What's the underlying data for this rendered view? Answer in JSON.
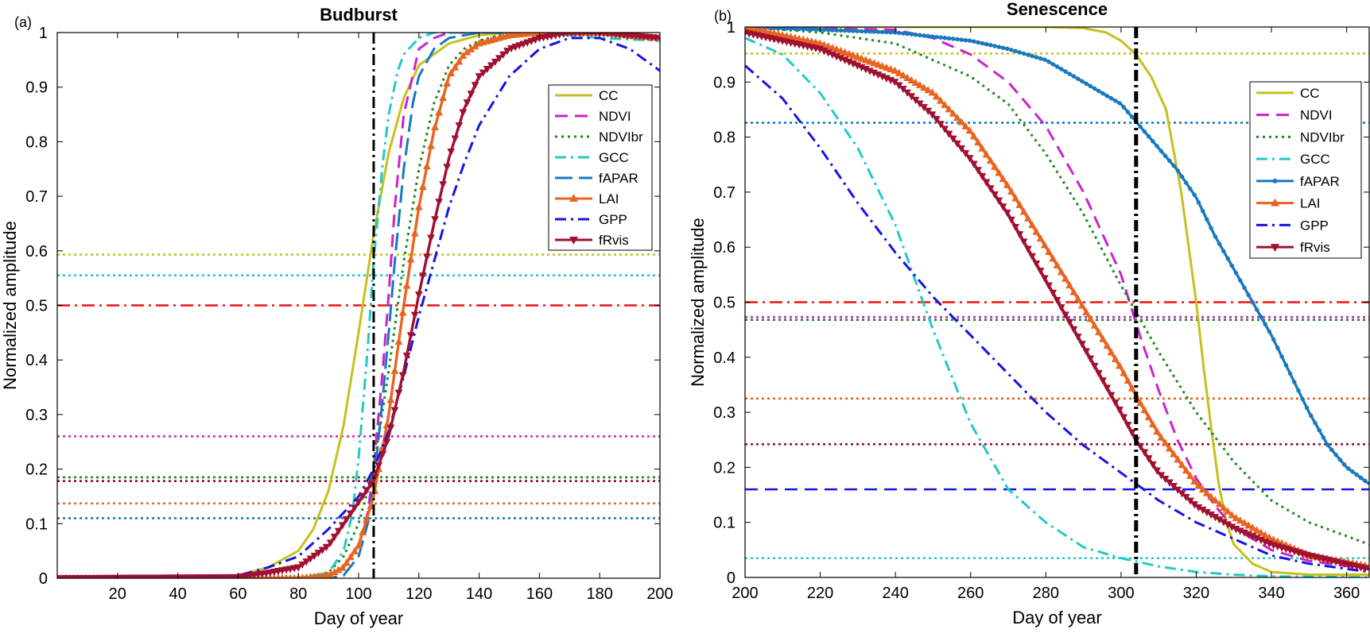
{
  "chart_data": [
    {
      "type": "line",
      "panel_label": "(a)",
      "title": "Budburst",
      "xlabel": "Day of year",
      "ylabel": "Normalized amplitude",
      "xlim": [
        0,
        200
      ],
      "ylim": [
        0,
        1
      ],
      "xticks": [
        "20",
        "40",
        "60",
        "80",
        "100",
        "120",
        "140",
        "160",
        "180",
        "200"
      ],
      "yticks": [
        "0",
        "0.1",
        "0.2",
        "0.3",
        "0.4",
        "0.5",
        "0.6",
        "0.7",
        "0.8",
        "0.9",
        "1"
      ],
      "vline_day": 105,
      "half_line": 0.5,
      "legend_position": "top-right",
      "series": [
        {
          "name": "CC",
          "color": "#c6c01e",
          "dash": "solid",
          "marker": "none",
          "threshold": 0.593,
          "x": [
            0,
            60,
            70,
            80,
            85,
            90,
            95,
            100,
            105,
            110,
            115,
            120,
            130,
            140,
            150,
            160,
            170,
            180,
            190,
            200
          ],
          "values": [
            0,
            0.005,
            0.02,
            0.05,
            0.09,
            0.16,
            0.28,
            0.45,
            0.63,
            0.78,
            0.88,
            0.94,
            0.98,
            0.995,
            1.0,
            1.0,
            1.0,
            1.0,
            0.99,
            0.99
          ]
        },
        {
          "name": "NDVI",
          "color": "#cc22cc",
          "dash": "dash",
          "marker": "none",
          "threshold": 0.26,
          "x": [
            0,
            80,
            90,
            95,
            100,
            103,
            105,
            108,
            110,
            112,
            115,
            120,
            125,
            130,
            140,
            160,
            180,
            200
          ],
          "values": [
            0,
            0,
            0.005,
            0.02,
            0.06,
            0.12,
            0.2,
            0.38,
            0.52,
            0.68,
            0.85,
            0.97,
            0.99,
            1.0,
            1.0,
            1.0,
            1.0,
            0.99
          ]
        },
        {
          "name": "NDVIbr",
          "color": "#1a8a1a",
          "dash": "dot",
          "marker": "none",
          "threshold": 0.185,
          "x": [
            0,
            80,
            90,
            95,
            100,
            105,
            110,
            115,
            120,
            125,
            130,
            135,
            140,
            150,
            160,
            180,
            200
          ],
          "values": [
            0,
            0,
            0.01,
            0.04,
            0.1,
            0.2,
            0.38,
            0.58,
            0.75,
            0.87,
            0.94,
            0.97,
            0.985,
            1.0,
            1.0,
            1.0,
            0.99
          ]
        },
        {
          "name": "GCC",
          "color": "#22c8c8",
          "dash": "dashdot",
          "marker": "none",
          "threshold": 0.555,
          "x": [
            0,
            80,
            90,
            95,
            98,
            100,
            103,
            105,
            108,
            110,
            113,
            115,
            120,
            125,
            130,
            140,
            160,
            180,
            200
          ],
          "values": [
            0,
            0,
            0.01,
            0.05,
            0.12,
            0.22,
            0.42,
            0.58,
            0.76,
            0.85,
            0.93,
            0.96,
            0.99,
            1.0,
            1.0,
            1.0,
            1.0,
            0.99,
            0.985
          ]
        },
        {
          "name": "fAPAR",
          "color": "#1878c0",
          "dash": "longdash",
          "marker": "none",
          "threshold": 0.11,
          "x": [
            0,
            90,
            95,
            100,
            103,
            105,
            108,
            110,
            112,
            115,
            118,
            120,
            125,
            130,
            140,
            160,
            180,
            200
          ],
          "values": [
            0,
            0,
            0.005,
            0.04,
            0.1,
            0.17,
            0.33,
            0.45,
            0.58,
            0.75,
            0.87,
            0.92,
            0.97,
            0.99,
            1.0,
            1.0,
            1.0,
            0.99
          ]
        },
        {
          "name": "LAI",
          "color": "#e86420",
          "dash": "solid",
          "marker": "triangle-up",
          "threshold": 0.137,
          "x": [
            0,
            80,
            90,
            95,
            100,
            105,
            110,
            115,
            120,
            125,
            130,
            135,
            140,
            150,
            160,
            180,
            200
          ],
          "values": [
            0,
            0,
            0.005,
            0.02,
            0.06,
            0.15,
            0.3,
            0.5,
            0.68,
            0.82,
            0.92,
            0.96,
            0.98,
            0.995,
            1.0,
            1.0,
            0.99
          ]
        },
        {
          "name": "GPP",
          "color": "#1414e6",
          "dash": "dashdot",
          "marker": "none",
          "threshold": 0.178,
          "x": [
            0,
            60,
            70,
            80,
            90,
            100,
            105,
            110,
            115,
            120,
            125,
            130,
            135,
            140,
            150,
            160,
            170,
            180,
            190,
            200
          ],
          "values": [
            0,
            0.005,
            0.02,
            0.04,
            0.09,
            0.15,
            0.2,
            0.27,
            0.37,
            0.48,
            0.58,
            0.68,
            0.76,
            0.83,
            0.92,
            0.97,
            0.99,
            0.99,
            0.97,
            0.93
          ]
        },
        {
          "name": "fRvis",
          "color": "#a01030",
          "dash": "solid",
          "marker": "triangle-down",
          "threshold": 0.178,
          "x": [
            0,
            60,
            70,
            80,
            90,
            95,
            100,
            105,
            110,
            115,
            120,
            125,
            130,
            135,
            140,
            150,
            160,
            170,
            180,
            190,
            200
          ],
          "values": [
            0,
            0.002,
            0.01,
            0.02,
            0.06,
            0.1,
            0.14,
            0.18,
            0.26,
            0.38,
            0.52,
            0.65,
            0.77,
            0.86,
            0.92,
            0.97,
            0.99,
            1.0,
            1.0,
            0.995,
            0.99
          ]
        }
      ]
    },
    {
      "type": "line",
      "panel_label": "(b)",
      "title": "Senescence",
      "xlabel": "Day of year",
      "ylabel": "Normalized amplitude",
      "xlim": [
        200,
        366
      ],
      "ylim": [
        0,
        1
      ],
      "xticks": [
        "200",
        "220",
        "240",
        "260",
        "280",
        "300",
        "320",
        "340",
        "360"
      ],
      "yticks": [
        "0",
        "0.1",
        "0.2",
        "0.3",
        "0.4",
        "0.5",
        "0.6",
        "0.7",
        "0.8",
        "0.9",
        "1"
      ],
      "vline_day": 304,
      "half_line": 0.5,
      "legend_position": "top-right",
      "series": [
        {
          "name": "CC",
          "color": "#c6c01e",
          "dash": "solid",
          "marker": "none",
          "threshold": 0.952,
          "x": [
            200,
            260,
            280,
            290,
            296,
            300,
            304,
            308,
            312,
            316,
            318,
            320,
            322,
            324,
            326,
            328,
            330,
            335,
            340,
            350,
            366
          ],
          "values": [
            1.0,
            1.0,
            1.0,
            0.998,
            0.99,
            0.975,
            0.95,
            0.91,
            0.85,
            0.7,
            0.6,
            0.5,
            0.38,
            0.27,
            0.17,
            0.1,
            0.06,
            0.025,
            0.01,
            0.005,
            0.005
          ]
        },
        {
          "name": "NDVI",
          "color": "#cc22cc",
          "dash": "dash",
          "marker": "none",
          "threshold": 0.473,
          "x": [
            200,
            240,
            250,
            260,
            270,
            280,
            290,
            300,
            305,
            310,
            315,
            320,
            325,
            330,
            340,
            350,
            366
          ],
          "values": [
            1.0,
            0.995,
            0.98,
            0.95,
            0.9,
            0.82,
            0.7,
            0.55,
            0.44,
            0.34,
            0.25,
            0.18,
            0.13,
            0.09,
            0.05,
            0.03,
            0.015
          ]
        },
        {
          "name": "NDVIbr",
          "color": "#1a8a1a",
          "dash": "dot",
          "marker": "none",
          "threshold": 0.468,
          "x": [
            200,
            220,
            240,
            260,
            270,
            280,
            290,
            300,
            310,
            320,
            330,
            340,
            350,
            366
          ],
          "values": [
            1.0,
            0.99,
            0.97,
            0.91,
            0.86,
            0.77,
            0.66,
            0.53,
            0.41,
            0.3,
            0.21,
            0.14,
            0.1,
            0.06
          ]
        },
        {
          "name": "GCC",
          "color": "#22c8c8",
          "dash": "dashdot",
          "marker": "none",
          "threshold": 0.035,
          "x": [
            200,
            210,
            220,
            230,
            240,
            250,
            260,
            270,
            280,
            290,
            300,
            310,
            320,
            330,
            340,
            366
          ],
          "values": [
            0.98,
            0.95,
            0.88,
            0.78,
            0.64,
            0.45,
            0.28,
            0.16,
            0.1,
            0.055,
            0.035,
            0.02,
            0.01,
            0.005,
            0.002,
            0.0
          ]
        },
        {
          "name": "fAPAR",
          "color": "#1878c0",
          "dash": "solid",
          "marker": "dot",
          "threshold": 0.826,
          "x": [
            200,
            220,
            240,
            260,
            270,
            280,
            290,
            300,
            305,
            310,
            315,
            320,
            325,
            330,
            335,
            340,
            345,
            350,
            355,
            360,
            366
          ],
          "values": [
            1.0,
            0.995,
            0.99,
            0.975,
            0.96,
            0.94,
            0.9,
            0.86,
            0.82,
            0.78,
            0.74,
            0.69,
            0.62,
            0.56,
            0.5,
            0.44,
            0.37,
            0.3,
            0.24,
            0.2,
            0.17
          ]
        },
        {
          "name": "LAI",
          "color": "#e86420",
          "dash": "solid",
          "marker": "triangle-up",
          "threshold": 0.325,
          "x": [
            200,
            220,
            240,
            250,
            260,
            270,
            280,
            290,
            300,
            304,
            310,
            320,
            330,
            340,
            350,
            366
          ],
          "values": [
            1.0,
            0.97,
            0.92,
            0.88,
            0.81,
            0.71,
            0.6,
            0.49,
            0.38,
            0.33,
            0.26,
            0.17,
            0.11,
            0.07,
            0.04,
            0.02
          ]
        },
        {
          "name": "GPP",
          "color": "#1414e6",
          "dash": "dashdot",
          "marker": "none",
          "threshold": 0.16,
          "x": [
            200,
            210,
            220,
            230,
            240,
            250,
            260,
            270,
            280,
            290,
            300,
            310,
            320,
            330,
            340,
            350,
            366
          ],
          "values": [
            0.93,
            0.87,
            0.78,
            0.68,
            0.59,
            0.51,
            0.44,
            0.37,
            0.3,
            0.24,
            0.19,
            0.14,
            0.1,
            0.07,
            0.04,
            0.025,
            0.01
          ]
        },
        {
          "name": "fRvis",
          "color": "#a01030",
          "dash": "solid",
          "marker": "triangle-down",
          "threshold": 0.242,
          "x": [
            200,
            220,
            240,
            250,
            260,
            270,
            280,
            290,
            300,
            304,
            310,
            320,
            330,
            340,
            350,
            366
          ],
          "values": [
            0.99,
            0.96,
            0.9,
            0.84,
            0.76,
            0.66,
            0.54,
            0.42,
            0.3,
            0.25,
            0.19,
            0.13,
            0.09,
            0.06,
            0.04,
            0.015
          ]
        }
      ]
    }
  ]
}
